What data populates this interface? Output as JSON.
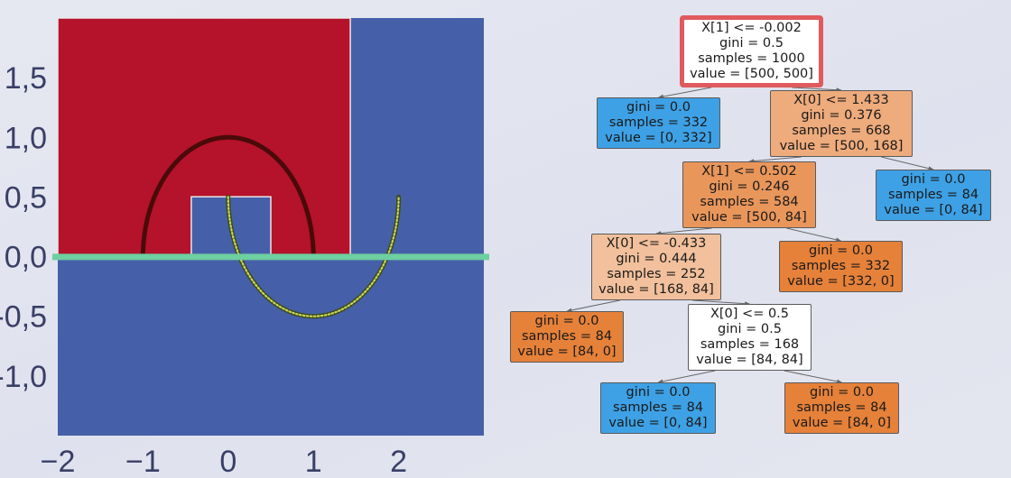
{
  "chart_data": {
    "type": "decision-boundary",
    "xlim": [
      -2,
      3
    ],
    "ylim": [
      -1.5,
      2
    ],
    "x_ticks": [
      "−2",
      "−1",
      "0",
      "1",
      "2"
    ],
    "y_ticks": [
      "1,5",
      "1,0",
      "0,5",
      "0,0",
      "-0,5",
      "-1,0"
    ],
    "colors": {
      "class_0": "#b5122b",
      "class_1": "#4560a8",
      "split_line": "#6ecfa0",
      "moon_upper": "#4a0a0a",
      "moon_lower": "#3d4a1f",
      "moon_lower_points": "#c8d85a"
    },
    "regions_class0": [
      {
        "x": [
          -2,
          1.433
        ],
        "y": [
          -0.002,
          2
        ]
      }
    ],
    "regions_class1_inside_class0": [
      {
        "x": [
          -0.433,
          0.5
        ],
        "y": [
          -0.002,
          0.502
        ]
      }
    ],
    "highlighted_split": {
      "feature": "X[1]",
      "threshold": -0.002
    },
    "moons": [
      {
        "name": "",
        "center": [
          0,
          0
        ],
        "radius": 1,
        "half": "upper"
      },
      {
        "name": "",
        "center": [
          1,
          0.5
        ],
        "radius": 1,
        "half": "lower"
      }
    ]
  },
  "tree": {
    "nodes": [
      {
        "lines": [
          "X[1] <= -0.002",
          "gini = 0.5",
          "samples = 1000",
          "value = [500, 500]"
        ],
        "fill": "#ffffff"
      },
      {
        "lines": [
          "gini = 0.0",
          "samples = 332",
          "value = [0, 332]"
        ],
        "fill": "#3ea1e5"
      },
      {
        "lines": [
          "X[0] <= 1.433",
          "gini = 0.376",
          "samples = 668",
          "value = [500, 168]"
        ],
        "fill": "#eeab7c"
      },
      {
        "lines": [
          "X[1] <= 0.502",
          "gini = 0.246",
          "samples = 584",
          "value = [500, 84]"
        ],
        "fill": "#e9965b"
      },
      {
        "lines": [
          "gini = 0.0",
          "samples = 84",
          "value = [0, 84]"
        ],
        "fill": "#3ea1e5"
      },
      {
        "lines": [
          "X[0] <= -0.433",
          "gini = 0.444",
          "samples = 252",
          "value = [168, 84]"
        ],
        "fill": "#f2c09c"
      },
      {
        "lines": [
          "gini = 0.0",
          "samples = 332",
          "value = [332, 0]"
        ],
        "fill": "#e68139"
      },
      {
        "lines": [
          "gini = 0.0",
          "samples = 84",
          "value = [84, 0]"
        ],
        "fill": "#e68139"
      },
      {
        "lines": [
          "X[0] <= 0.5",
          "gini = 0.5",
          "samples = 168",
          "value = [84, 84]"
        ],
        "fill": "#ffffff"
      },
      {
        "lines": [
          "gini = 0.0",
          "samples = 84",
          "value = [0, 84]"
        ],
        "fill": "#3ea1e5"
      },
      {
        "lines": [
          "gini = 0.0",
          "samples = 84",
          "value = [84, 0]"
        ],
        "fill": "#e68139"
      }
    ],
    "edges": [
      [
        0,
        1
      ],
      [
        0,
        2
      ],
      [
        2,
        3
      ],
      [
        2,
        4
      ],
      [
        3,
        5
      ],
      [
        3,
        6
      ],
      [
        5,
        7
      ],
      [
        5,
        8
      ],
      [
        8,
        9
      ],
      [
        8,
        10
      ]
    ],
    "highlight_color": "#e05a5e"
  }
}
